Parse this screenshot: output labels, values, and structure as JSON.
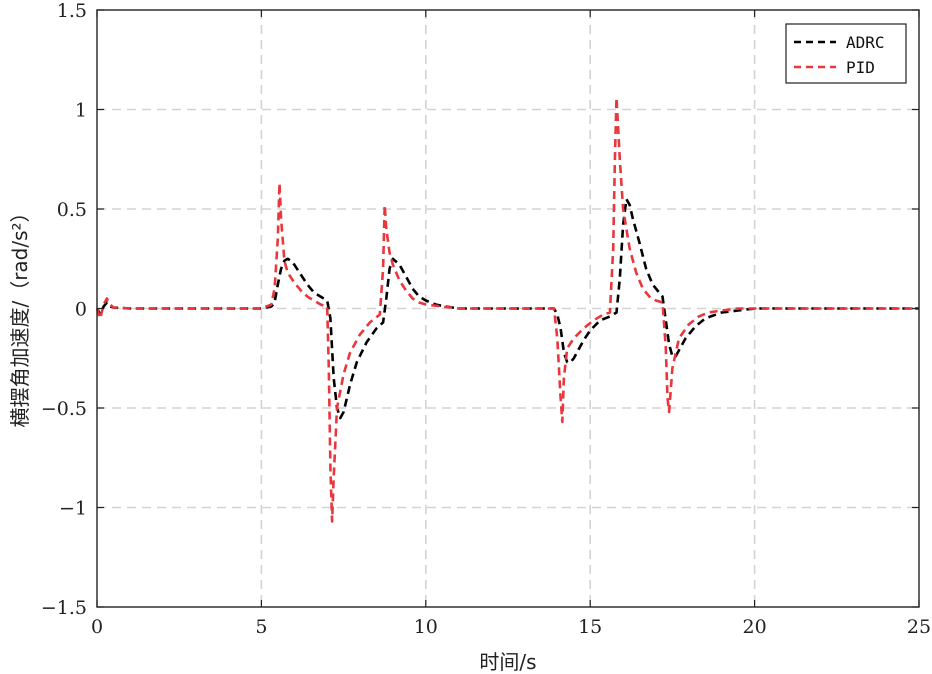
{
  "chart_data": {
    "type": "line",
    "title": "",
    "xlabel": "时间/s",
    "ylabel": "横摆角加速度/（rad/s²）",
    "xlim": [
      0,
      25
    ],
    "ylim": [
      -1.5,
      1.5
    ],
    "xticks": [
      0,
      5,
      10,
      15,
      20,
      25
    ],
    "xtick_labels": [
      "0",
      "5",
      "10",
      "15",
      "20",
      "25"
    ],
    "yticks": [
      -1.5,
      -1,
      -0.5,
      0,
      0.5,
      1,
      1.5
    ],
    "ytick_labels": [
      "−1.5",
      "−1",
      "−0.5",
      "0",
      "0.5",
      "1",
      "1.5"
    ],
    "grid": true,
    "legend_position": "top-right",
    "series": [
      {
        "name": "ADRC",
        "color": "#000000",
        "line_style": "dashed",
        "x": [
          0,
          0.1,
          0.2,
          0.3,
          0.4,
          0.5,
          1,
          2,
          3,
          4,
          5,
          5.3,
          5.4,
          5.5,
          5.6,
          5.7,
          5.8,
          5.9,
          6.0,
          6.2,
          6.4,
          6.6,
          6.8,
          7.0,
          7.1,
          7.2,
          7.3,
          7.4,
          7.5,
          7.7,
          7.9,
          8.2,
          8.5,
          8.7,
          8.8,
          8.9,
          9.0,
          9.2,
          9.4,
          9.6,
          9.8,
          10.0,
          10.3,
          10.6,
          11,
          12,
          13,
          13.9,
          14.0,
          14.1,
          14.2,
          14.3,
          14.4,
          14.5,
          14.6,
          14.8,
          15.0,
          15.3,
          15.6,
          15.8,
          15.9,
          16.0,
          16.1,
          16.2,
          16.3,
          16.5,
          16.7,
          16.9,
          17.1,
          17.2,
          17.3,
          17.4,
          17.5,
          17.6,
          17.7,
          17.9,
          18.2,
          18.5,
          19.0,
          19.5,
          20,
          21,
          22,
          23,
          24,
          25
        ],
        "y": [
          0,
          -0.03,
          0.01,
          0.03,
          0.01,
          0.005,
          0,
          0,
          0,
          0,
          0,
          0.01,
          0.03,
          0.12,
          0.2,
          0.24,
          0.25,
          0.24,
          0.22,
          0.17,
          0.12,
          0.08,
          0.06,
          0.04,
          -0.05,
          -0.35,
          -0.5,
          -0.55,
          -0.52,
          -0.38,
          -0.27,
          -0.17,
          -0.1,
          -0.07,
          0.05,
          0.2,
          0.25,
          0.22,
          0.16,
          0.1,
          0.06,
          0.04,
          0.02,
          0.01,
          0,
          0,
          0,
          0,
          -0.03,
          -0.1,
          -0.22,
          -0.27,
          -0.27,
          -0.25,
          -0.22,
          -0.16,
          -0.11,
          -0.06,
          -0.04,
          -0.02,
          0.15,
          0.42,
          0.55,
          0.52,
          0.45,
          0.33,
          0.2,
          0.12,
          0.08,
          0.06,
          -0.06,
          -0.18,
          -0.24,
          -0.24,
          -0.21,
          -0.15,
          -0.09,
          -0.05,
          -0.02,
          -0.01,
          0,
          0,
          0,
          0,
          0,
          0
        ]
      },
      {
        "name": "PID",
        "color": "#e8383d",
        "line_style": "dashed",
        "x": [
          0,
          0.1,
          0.2,
          0.3,
          0.4,
          0.5,
          1,
          2,
          3,
          4,
          5,
          5.3,
          5.4,
          5.5,
          5.55,
          5.6,
          5.7,
          5.8,
          6.0,
          6.2,
          6.4,
          6.6,
          6.8,
          7.0,
          7.05,
          7.1,
          7.15,
          7.2,
          7.3,
          7.5,
          7.7,
          8.0,
          8.3,
          8.6,
          8.7,
          8.75,
          8.8,
          8.9,
          9.0,
          9.2,
          9.4,
          9.6,
          9.8,
          10.0,
          10.5,
          11,
          12,
          13,
          13.9,
          14.0,
          14.1,
          14.15,
          14.2,
          14.3,
          14.5,
          14.8,
          15.1,
          15.4,
          15.6,
          15.7,
          15.75,
          15.8,
          15.9,
          16.0,
          16.2,
          16.4,
          16.6,
          16.8,
          17.0,
          17.2,
          17.3,
          17.35,
          17.4,
          17.5,
          17.7,
          18.0,
          18.3,
          18.6,
          19.0,
          19.5,
          20,
          21,
          22,
          23,
          24,
          25
        ],
        "y": [
          0,
          -0.05,
          0.02,
          0.05,
          0.02,
          0.005,
          0,
          0,
          0,
          0,
          0,
          0.02,
          0.1,
          0.35,
          0.63,
          0.45,
          0.24,
          0.18,
          0.13,
          0.09,
          0.06,
          0.04,
          0.02,
          0.01,
          -0.3,
          -0.8,
          -1.07,
          -0.85,
          -0.5,
          -0.33,
          -0.22,
          -0.13,
          -0.07,
          -0.03,
          0.2,
          0.52,
          0.4,
          0.28,
          0.22,
          0.14,
          0.09,
          0.05,
          0.03,
          0.02,
          0.01,
          0,
          0,
          0,
          0,
          -0.15,
          -0.45,
          -0.57,
          -0.35,
          -0.2,
          -0.15,
          -0.1,
          -0.06,
          -0.03,
          -0.02,
          0.3,
          0.75,
          1.06,
          0.75,
          0.5,
          0.3,
          0.18,
          0.1,
          0.06,
          0.04,
          0.03,
          -0.2,
          -0.45,
          -0.52,
          -0.3,
          -0.15,
          -0.08,
          -0.04,
          -0.02,
          -0.01,
          0,
          0,
          0,
          0,
          0,
          0,
          0
        ]
      }
    ]
  }
}
